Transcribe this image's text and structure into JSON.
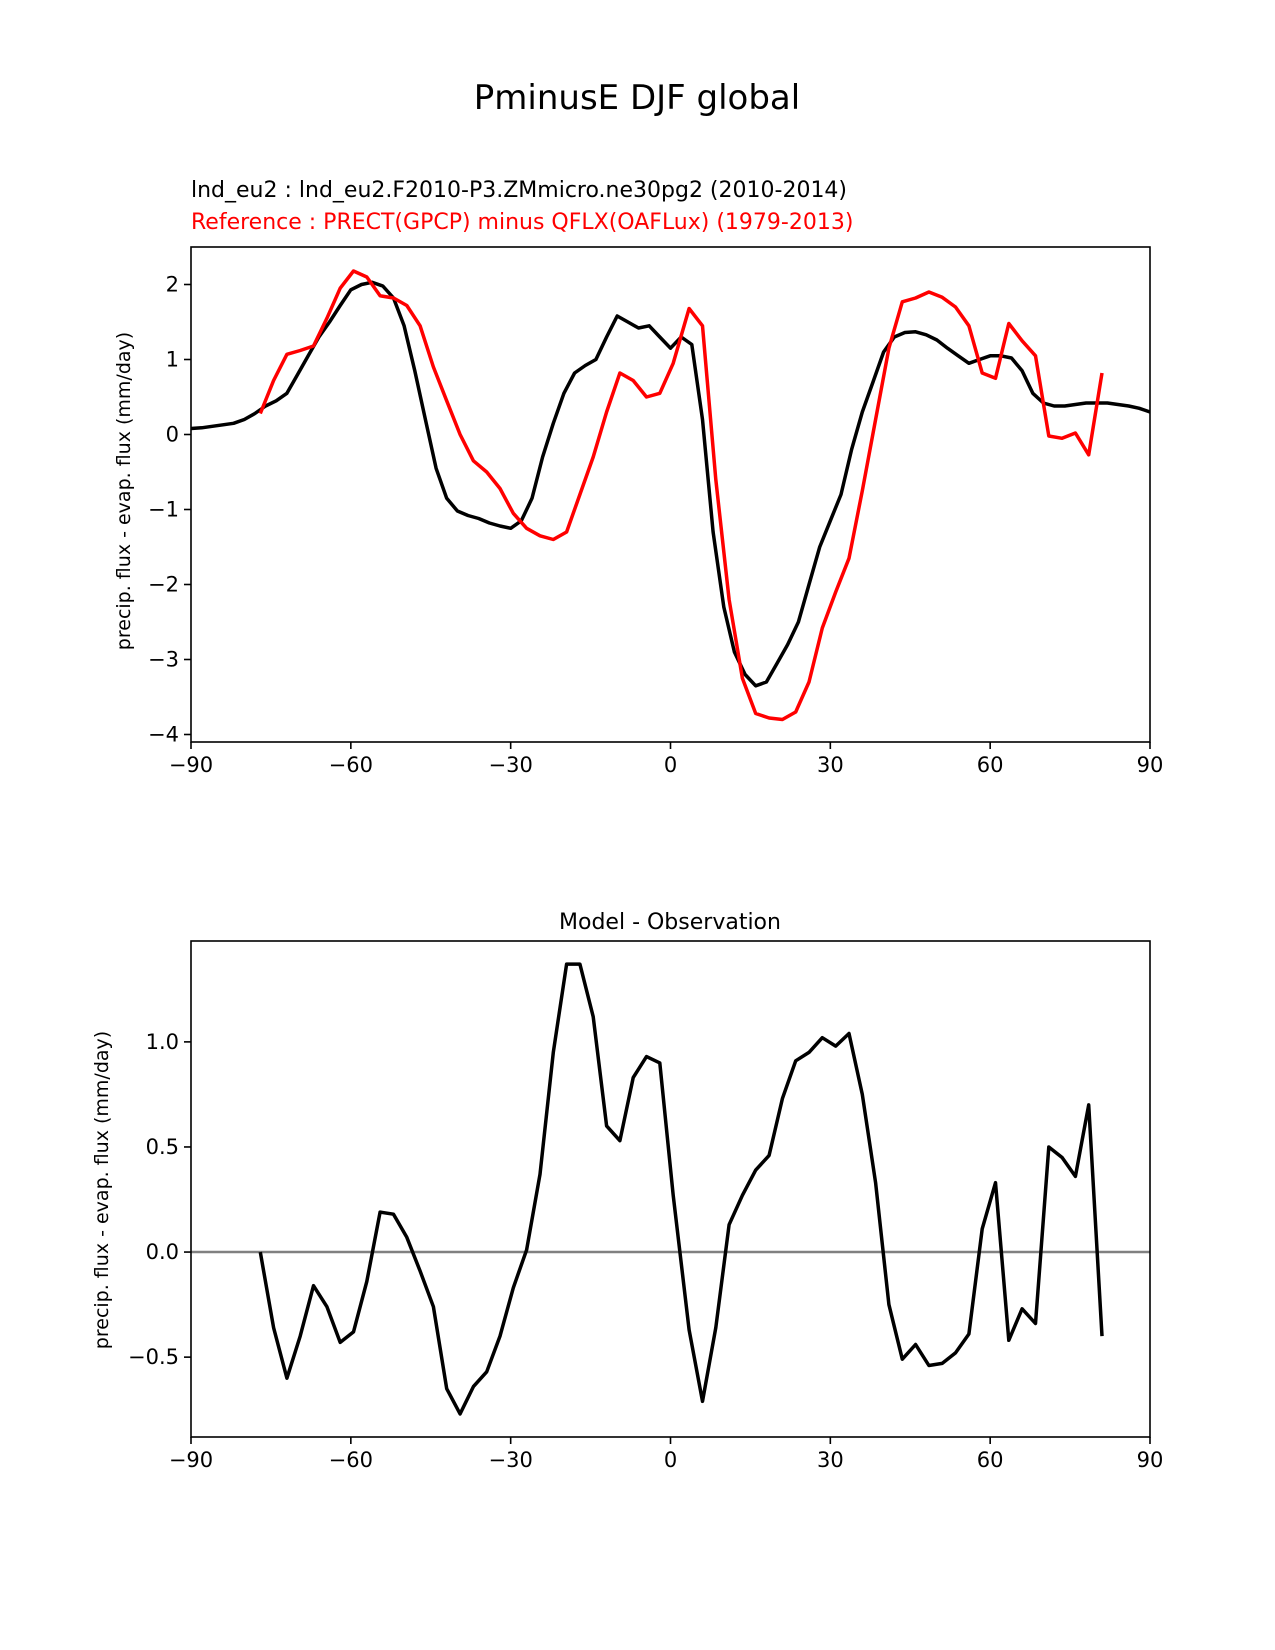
{
  "figure_title": "PminusE DJF global",
  "colors": {
    "test": "#000000",
    "reference": "#ff0000",
    "zero_line": "#808080"
  },
  "chart_data": [
    {
      "type": "line",
      "title": "lnd_eu2 : lnd_eu2.F2010-P3.ZMmicro.ne30pg2 (2010-2014)",
      "subtitle": "Reference : PRECT(GPCP) minus QFLX(OAFLux) (1979-2013)",
      "xlabel": "",
      "ylabel": "precip. flux - evap. flux (mm/day)",
      "xlim": [
        -90,
        90
      ],
      "ylim": [
        -4.1,
        2.5
      ],
      "xticks": [
        -90,
        -60,
        -30,
        0,
        30,
        60,
        90
      ],
      "xtick_labels": [
        "−90",
        "−60",
        "−30",
        "0",
        "30",
        "60",
        "90"
      ],
      "yticks": [
        -4,
        -3,
        -2,
        -1,
        0,
        1,
        2
      ],
      "ytick_labels": [
        "−4",
        "−3",
        "−2",
        "−1",
        "0",
        "1",
        "2"
      ],
      "series": [
        {
          "name": "lnd_eu2",
          "color": "#000000",
          "x": [
            -90,
            -88,
            -86,
            -84,
            -82,
            -80,
            -78,
            -76,
            -74,
            -72,
            -70,
            -68,
            -66,
            -64,
            -62,
            -60,
            -58,
            -56,
            -54,
            -52,
            -50,
            -48,
            -46,
            -44,
            -42,
            -40,
            -38,
            -36,
            -34,
            -32,
            -30,
            -28,
            -26,
            -24,
            -22,
            -20,
            -18,
            -16,
            -14,
            -12,
            -10,
            -8,
            -6,
            -4,
            -2,
            0,
            2,
            4,
            6,
            8,
            10,
            12,
            14,
            16,
            18,
            20,
            22,
            24,
            26,
            28,
            30,
            32,
            34,
            36,
            38,
            40,
            42,
            44,
            46,
            48,
            50,
            52,
            54,
            56,
            58,
            60,
            62,
            64,
            66,
            68,
            70,
            72,
            74,
            76,
            78,
            80,
            82,
            84,
            86,
            88,
            90
          ],
          "y": [
            0.08,
            0.09,
            0.11,
            0.13,
            0.15,
            0.2,
            0.28,
            0.38,
            0.45,
            0.55,
            0.8,
            1.05,
            1.3,
            1.5,
            1.72,
            1.93,
            2.0,
            2.03,
            1.98,
            1.82,
            1.45,
            0.85,
            0.2,
            -0.45,
            -0.85,
            -1.02,
            -1.08,
            -1.12,
            -1.18,
            -1.22,
            -1.25,
            -1.15,
            -0.85,
            -0.3,
            0.15,
            0.55,
            0.82,
            0.92,
            1.0,
            1.3,
            1.58,
            1.5,
            1.42,
            1.45,
            1.3,
            1.15,
            1.3,
            1.2,
            0.2,
            -1.3,
            -2.3,
            -2.9,
            -3.2,
            -3.35,
            -3.3,
            -3.05,
            -2.8,
            -2.5,
            -2.0,
            -1.5,
            -1.15,
            -0.8,
            -0.2,
            0.3,
            0.7,
            1.1,
            1.3,
            1.36,
            1.37,
            1.33,
            1.26,
            1.15,
            1.05,
            0.95,
            1.0,
            1.05,
            1.05,
            1.02,
            0.85,
            0.55,
            0.42,
            0.38,
            0.38,
            0.4,
            0.42,
            0.42,
            0.42,
            0.4,
            0.38,
            0.35,
            0.3
          ]
        },
        {
          "name": "Reference",
          "color": "#ff0000",
          "x": [
            -77,
            -74.5,
            -72,
            -69.5,
            -67,
            -64.5,
            -62,
            -59.5,
            -57,
            -54.5,
            -52,
            -49.5,
            -47,
            -44.5,
            -42,
            -39.5,
            -37,
            -34.5,
            -32,
            -29.5,
            -27,
            -24.5,
            -22,
            -19.5,
            -17,
            -14.5,
            -12,
            -9.5,
            -7,
            -4.5,
            -2,
            0.5,
            3.5,
            6,
            8.5,
            11,
            13.5,
            16,
            18.5,
            21,
            23.5,
            26,
            28.5,
            31,
            33.5,
            36,
            38.5,
            41,
            43.5,
            46,
            48.5,
            51,
            53.5,
            56,
            58.5,
            61,
            63.5,
            66,
            68.5,
            71,
            73.5,
            76,
            78.5,
            81
          ],
          "y": [
            0.28,
            0.72,
            1.07,
            1.12,
            1.18,
            1.55,
            1.95,
            2.18,
            2.1,
            1.85,
            1.82,
            1.72,
            1.45,
            0.9,
            0.45,
            0.0,
            -0.35,
            -0.5,
            -0.72,
            -1.05,
            -1.25,
            -1.35,
            -1.4,
            -1.3,
            -0.8,
            -0.3,
            0.3,
            0.82,
            0.72,
            0.5,
            0.55,
            0.95,
            1.68,
            1.45,
            -0.6,
            -2.2,
            -3.25,
            -3.72,
            -3.78,
            -3.8,
            -3.7,
            -3.3,
            -2.58,
            -2.1,
            -1.65,
            -0.75,
            0.2,
            1.15,
            1.77,
            1.82,
            1.9,
            1.83,
            1.7,
            1.45,
            0.82,
            0.75,
            1.48,
            1.25,
            1.05,
            -0.02,
            -0.05,
            0.02,
            -0.27,
            0.82
          ]
        }
      ]
    },
    {
      "type": "line",
      "title": "Model - Observation",
      "xlabel": "",
      "ylabel": "precip. flux - evap. flux (mm/day)",
      "xlim": [
        -90,
        90
      ],
      "ylim": [
        -0.88,
        1.48
      ],
      "xticks": [
        -90,
        -60,
        -30,
        0,
        30,
        60,
        90
      ],
      "xtick_labels": [
        "−90",
        "−60",
        "−30",
        "0",
        "30",
        "60",
        "90"
      ],
      "yticks": [
        -0.5,
        0.0,
        0.5,
        1.0
      ],
      "ytick_labels": [
        "−0.5",
        "0.0",
        "0.5",
        "1.0"
      ],
      "zero_line": 0,
      "series": [
        {
          "name": "Model - Observation",
          "color": "#000000",
          "x": [
            -77,
            -74.5,
            -72,
            -69.5,
            -67,
            -64.5,
            -62,
            -59.5,
            -57,
            -54.5,
            -52,
            -49.5,
            -47,
            -44.5,
            -42,
            -39.5,
            -37,
            -34.5,
            -32,
            -29.5,
            -27,
            -24.5,
            -22,
            -19.5,
            -17,
            -14.5,
            -12,
            -9.5,
            -7,
            -4.5,
            -2,
            0.5,
            3.5,
            6,
            8.5,
            11,
            13.5,
            16,
            18.5,
            21,
            23.5,
            26,
            28.5,
            31,
            33.5,
            36,
            38.5,
            41,
            43.5,
            46,
            48.5,
            51,
            53.5,
            56,
            58.5,
            61,
            63.5,
            66,
            68.5,
            71,
            73.5,
            76,
            78.5,
            81
          ],
          "y": [
            0.0,
            -0.36,
            -0.6,
            -0.4,
            -0.16,
            -0.26,
            -0.43,
            -0.38,
            -0.14,
            0.19,
            0.18,
            0.07,
            -0.09,
            -0.26,
            -0.65,
            -0.77,
            -0.64,
            -0.57,
            -0.4,
            -0.17,
            0.01,
            0.37,
            0.95,
            1.37,
            1.37,
            1.12,
            0.6,
            0.53,
            0.83,
            0.93,
            0.9,
            0.27,
            -0.37,
            -0.71,
            -0.36,
            0.13,
            0.27,
            0.39,
            0.46,
            0.73,
            0.91,
            0.95,
            1.02,
            0.98,
            1.04,
            0.75,
            0.33,
            -0.25,
            -0.51,
            -0.44,
            -0.54,
            -0.53,
            -0.48,
            -0.39,
            0.11,
            0.33,
            -0.42,
            -0.27,
            -0.34,
            0.5,
            0.45,
            0.36,
            0.7,
            -0.4
          ]
        }
      ]
    }
  ]
}
